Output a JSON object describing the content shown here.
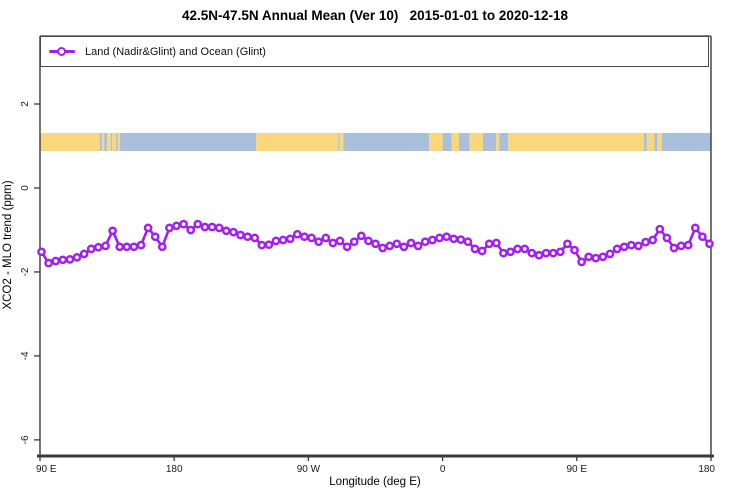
{
  "title": "42.5N-47.5N Annual Mean (Ver 10)   2015-01-01 to 2020-12-18",
  "legend": {
    "label": "Land (Nadir&Glint) and Ocean (Glint)"
  },
  "colors": {
    "series_purple": "#A020F0",
    "land_yellow": "#FBD77B",
    "ocean_blue": "#A8C0DC",
    "axis_dark": "#3a3a3a",
    "tick_text": "#1a1a1a"
  },
  "axes": {
    "x": {
      "label": "Longitude (deg E)",
      "tick_labels": [
        "90 E",
        "180",
        "90 W",
        "0",
        "90 E",
        "180"
      ],
      "tick_lons_ext": [
        90,
        180,
        270,
        360,
        450,
        540
      ]
    },
    "y": {
      "label": "XCO2 - MLO trend (ppm)",
      "tick_values": [
        2,
        0,
        -2,
        -4,
        -6
      ]
    }
  },
  "band": {
    "description": "land/ocean strip along latitude band",
    "y_top_ppm": 1.31,
    "y_bottom_ppm": 0.88,
    "segments": [
      {
        "type": "land",
        "from": 90,
        "to": 130
      },
      {
        "type": "ocean",
        "from": 130,
        "to": 131.5
      },
      {
        "type": "land",
        "from": 131.5,
        "to": 133
      },
      {
        "type": "ocean",
        "from": 133,
        "to": 135
      },
      {
        "type": "land",
        "from": 135,
        "to": 137.5
      },
      {
        "type": "ocean",
        "from": 137.5,
        "to": 138.5
      },
      {
        "type": "land",
        "from": 138.5,
        "to": 141
      },
      {
        "type": "ocean",
        "from": 141,
        "to": 142
      },
      {
        "type": "land",
        "from": 142,
        "to": 143.5
      },
      {
        "type": "ocean",
        "from": 143.5,
        "to": 235
      },
      {
        "type": "land",
        "from": 235,
        "to": 290
      },
      {
        "type": "ocean",
        "from": 290,
        "to": 291
      },
      {
        "type": "land",
        "from": 291,
        "to": 293.5
      },
      {
        "type": "ocean",
        "from": 293.5,
        "to": 351
      },
      {
        "type": "land",
        "from": 351,
        "to": 360
      },
      {
        "type": "ocean",
        "from": 360,
        "to": 366
      },
      {
        "type": "land",
        "from": 366,
        "to": 371
      },
      {
        "type": "ocean",
        "from": 371,
        "to": 378
      },
      {
        "type": "land",
        "from": 378,
        "to": 387
      },
      {
        "type": "ocean",
        "from": 387,
        "to": 396
      },
      {
        "type": "land",
        "from": 396,
        "to": 398
      },
      {
        "type": "ocean",
        "from": 398,
        "to": 404
      },
      {
        "type": "land",
        "from": 404,
        "to": 495
      },
      {
        "type": "ocean",
        "from": 495,
        "to": 497
      },
      {
        "type": "land",
        "from": 497,
        "to": 502
      },
      {
        "type": "ocean",
        "from": 502,
        "to": 504
      },
      {
        "type": "land",
        "from": 504,
        "to": 507
      },
      {
        "type": "ocean",
        "from": 507,
        "to": 540
      }
    ]
  },
  "chart_data": {
    "type": "line",
    "title": "42.5N-47.5N Annual Mean (Ver 10)   2015-01-01 to 2020-12-18",
    "xlabel": "Longitude (deg E)",
    "ylabel": "XCO2 - MLO trend (ppm)",
    "x_axis_note": "longitude in deg E, extended 90E eastward around globe to 180 (90..540)",
    "xlim_ext": [
      90,
      540
    ],
    "ylim": [
      -6.36,
      3.62
    ],
    "x_start": 91.0,
    "x_step": 4.766,
    "legend_position": "top-left full-width box",
    "grid": false,
    "series": [
      {
        "name": "Land (Nadir&Glint) and Ocean (Glint)",
        "color": "#A020F0",
        "marker": "open-circle",
        "values": [
          -1.52,
          -1.79,
          -1.74,
          -1.71,
          -1.7,
          -1.65,
          -1.57,
          -1.45,
          -1.41,
          -1.38,
          -1.02,
          -1.4,
          -1.4,
          -1.4,
          -1.36,
          -0.95,
          -1.16,
          -1.4,
          -0.95,
          -0.9,
          -0.86,
          -1.0,
          -0.86,
          -0.93,
          -0.93,
          -0.95,
          -1.02,
          -1.05,
          -1.12,
          -1.16,
          -1.19,
          -1.36,
          -1.35,
          -1.26,
          -1.24,
          -1.21,
          -1.1,
          -1.16,
          -1.19,
          -1.28,
          -1.19,
          -1.31,
          -1.26,
          -1.4,
          -1.28,
          -1.14,
          -1.26,
          -1.33,
          -1.43,
          -1.38,
          -1.33,
          -1.4,
          -1.31,
          -1.38,
          -1.28,
          -1.24,
          -1.19,
          -1.16,
          -1.21,
          -1.23,
          -1.28,
          -1.45,
          -1.5,
          -1.33,
          -1.31,
          -1.55,
          -1.52,
          -1.45,
          -1.45,
          -1.55,
          -1.6,
          -1.55,
          -1.55,
          -1.52,
          -1.33,
          -1.48,
          -1.76,
          -1.64,
          -1.67,
          -1.64,
          -1.57,
          -1.45,
          -1.4,
          -1.36,
          -1.38,
          -1.29,
          -1.24,
          -0.98,
          -1.19,
          -1.43,
          -1.38,
          -1.36,
          -0.95,
          -1.16,
          -1.33
        ]
      }
    ]
  }
}
